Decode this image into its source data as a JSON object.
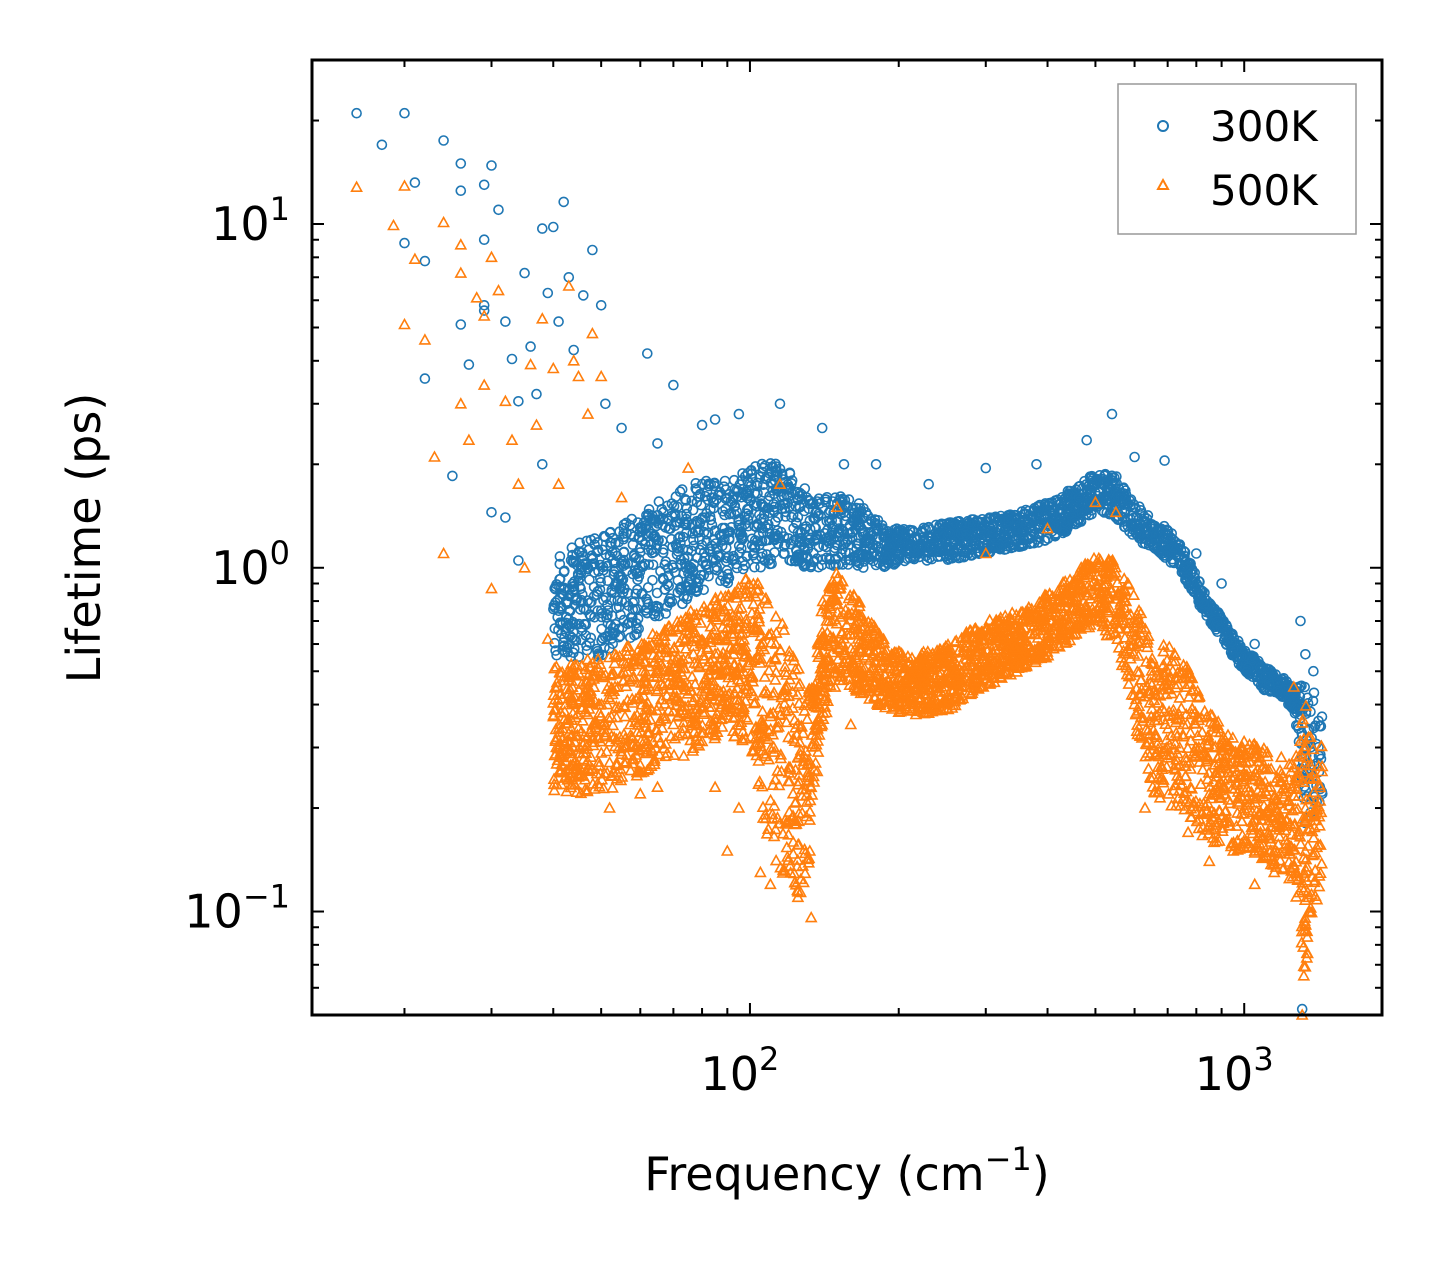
{
  "chart_data": {
    "type": "scatter",
    "title": "",
    "xscale": "log",
    "yscale": "log",
    "xlim": [
      13,
      1900
    ],
    "ylim": [
      0.05,
      30
    ],
    "xlabel": {
      "main": "Frequency (cm",
      "sup": "−1",
      "end": ")"
    },
    "ylabel": "Lifetime (ps)",
    "x_ticks": [
      {
        "value": 100,
        "base": "10",
        "exp": "2"
      },
      {
        "value": 1000,
        "base": "10",
        "exp": "3"
      }
    ],
    "y_ticks": [
      {
        "value": 0.1,
        "base": "10",
        "exp": "−1"
      },
      {
        "value": 1,
        "base": "10",
        "exp": "0"
      },
      {
        "value": 10,
        "base": "10",
        "exp": "1"
      }
    ],
    "legend": {
      "position": "top-right"
    },
    "series": [
      {
        "name": "300K",
        "marker": "circle",
        "color": "#1f77b4",
        "points": [
          [
            16,
            21
          ],
          [
            18,
            17
          ],
          [
            20,
            8.8
          ],
          [
            20,
            21
          ],
          [
            21,
            13.2
          ],
          [
            22,
            7.8
          ],
          [
            22,
            3.55
          ],
          [
            24,
            17.5
          ],
          [
            25,
            1.85
          ],
          [
            26,
            15
          ],
          [
            26,
            12.5
          ],
          [
            26,
            5.1
          ],
          [
            27,
            3.9
          ],
          [
            29,
            13
          ],
          [
            29,
            5.8
          ],
          [
            29,
            5.6
          ],
          [
            29,
            9
          ],
          [
            30,
            14.8
          ],
          [
            30,
            1.45
          ],
          [
            31,
            11
          ],
          [
            32,
            5.2
          ],
          [
            32,
            1.4
          ],
          [
            33,
            4.05
          ],
          [
            34,
            3.05
          ],
          [
            34,
            1.05
          ],
          [
            35,
            7.2
          ],
          [
            36,
            4.4
          ],
          [
            37,
            3.2
          ],
          [
            38,
            9.7
          ],
          [
            38,
            2.0
          ],
          [
            39,
            6.3
          ],
          [
            40,
            9.8
          ],
          [
            41,
            5.2
          ],
          [
            42,
            11.6
          ],
          [
            43,
            7.0
          ],
          [
            44,
            4.3
          ],
          [
            46,
            6.2
          ],
          [
            48,
            8.4
          ],
          [
            50,
            5.8
          ],
          [
            51,
            3.0
          ],
          [
            55,
            2.55
          ],
          [
            62,
            4.2
          ],
          [
            65,
            2.3
          ],
          [
            70,
            3.4
          ],
          [
            80,
            2.6
          ],
          [
            85,
            2.7
          ],
          [
            95,
            2.8
          ],
          [
            115,
            3.0
          ],
          [
            140,
            2.55
          ],
          [
            155,
            2.0
          ],
          [
            180,
            2.0
          ],
          [
            230,
            1.75
          ],
          [
            300,
            1.95
          ],
          [
            380,
            2.0
          ],
          [
            480,
            2.35
          ],
          [
            540,
            2.8
          ],
          [
            600,
            2.1
          ],
          [
            690,
            2.05
          ],
          [
            800,
            1.1
          ],
          [
            900,
            0.9
          ],
          [
            1050,
            0.6
          ],
          [
            1300,
            0.7
          ],
          [
            1330,
            0.56
          ],
          [
            1380,
            0.5
          ],
          [
            1310,
            0.052
          ]
        ],
        "trend": [
          [
            40,
            1.1,
            0.55
          ],
          [
            50,
            1.25,
            0.55
          ],
          [
            60,
            1.45,
            0.65
          ],
          [
            70,
            1.65,
            0.75
          ],
          [
            80,
            1.8,
            0.85
          ],
          [
            90,
            1.8,
            0.9
          ],
          [
            100,
            1.95,
            1.0
          ],
          [
            110,
            2.05,
            1.0
          ],
          [
            120,
            1.95,
            1.05
          ],
          [
            130,
            1.7,
            1.0
          ],
          [
            140,
            1.6,
            1.0
          ],
          [
            150,
            1.65,
            1.0
          ],
          [
            160,
            1.6,
            1.0
          ],
          [
            170,
            1.5,
            1.0
          ],
          [
            190,
            1.3,
            1.0
          ],
          [
            210,
            1.3,
            1.05
          ],
          [
            250,
            1.35,
            1.05
          ],
          [
            300,
            1.4,
            1.1
          ],
          [
            350,
            1.45,
            1.15
          ],
          [
            400,
            1.55,
            1.2
          ],
          [
            450,
            1.7,
            1.3
          ],
          [
            500,
            1.9,
            1.45
          ],
          [
            550,
            1.85,
            1.4
          ],
          [
            600,
            1.55,
            1.2
          ],
          [
            650,
            1.4,
            1.15
          ],
          [
            700,
            1.3,
            1.05
          ],
          [
            750,
            1.15,
            0.95
          ],
          [
            800,
            0.95,
            0.8
          ],
          [
            850,
            0.8,
            0.7
          ],
          [
            900,
            0.72,
            0.62
          ],
          [
            950,
            0.64,
            0.55
          ],
          [
            1000,
            0.58,
            0.5
          ],
          [
            1100,
            0.52,
            0.44
          ],
          [
            1200,
            0.48,
            0.42
          ],
          [
            1260,
            0.44,
            0.38
          ],
          [
            1330,
            0.48,
            0.18
          ],
          [
            1380,
            0.45,
            0.2
          ],
          [
            1440,
            0.38,
            0.2
          ]
        ]
      },
      {
        "name": "500K",
        "marker": "triangle",
        "color": "#ff7f0e",
        "points": [
          [
            16,
            12.8
          ],
          [
            19,
            9.9
          ],
          [
            20,
            5.1
          ],
          [
            20,
            12.9
          ],
          [
            21,
            7.9
          ],
          [
            22,
            4.6
          ],
          [
            23,
            2.1
          ],
          [
            24,
            10.1
          ],
          [
            24,
            1.1
          ],
          [
            26,
            8.7
          ],
          [
            26,
            7.2
          ],
          [
            26,
            3.0
          ],
          [
            27,
            2.35
          ],
          [
            28,
            6.1
          ],
          [
            29,
            5.4
          ],
          [
            29,
            3.4
          ],
          [
            30,
            8.0
          ],
          [
            30,
            0.87
          ],
          [
            31,
            6.4
          ],
          [
            32,
            3.05
          ],
          [
            33,
            2.35
          ],
          [
            34,
            1.75
          ],
          [
            35,
            1.0
          ],
          [
            36,
            3.9
          ],
          [
            37,
            2.6
          ],
          [
            38,
            5.3
          ],
          [
            39,
            0.62
          ],
          [
            40,
            3.8
          ],
          [
            41,
            1.75
          ],
          [
            43,
            6.6
          ],
          [
            44,
            4.0
          ],
          [
            45,
            3.6
          ],
          [
            47,
            2.8
          ],
          [
            48,
            4.8
          ],
          [
            50,
            3.6
          ],
          [
            52,
            0.2
          ],
          [
            55,
            1.6
          ],
          [
            60,
            0.22
          ],
          [
            65,
            0.23
          ],
          [
            75,
            1.95
          ],
          [
            85,
            0.23
          ],
          [
            90,
            0.15
          ],
          [
            95,
            0.2
          ],
          [
            105,
            0.13
          ],
          [
            110,
            0.12
          ],
          [
            115,
            1.75
          ],
          [
            125,
            0.11
          ],
          [
            133,
            0.096
          ],
          [
            150,
            1.5
          ],
          [
            160,
            0.35
          ],
          [
            200,
            0.38
          ],
          [
            250,
            0.39
          ],
          [
            300,
            1.1
          ],
          [
            400,
            1.3
          ],
          [
            500,
            1.55
          ],
          [
            550,
            1.45
          ],
          [
            630,
            0.2
          ],
          [
            700,
            0.28
          ],
          [
            770,
            0.17
          ],
          [
            850,
            0.14
          ],
          [
            950,
            0.15
          ],
          [
            1050,
            0.12
          ],
          [
            1150,
            0.13
          ],
          [
            1260,
            0.45
          ],
          [
            1310,
            0.05
          ],
          [
            1320,
            0.065
          ],
          [
            1350,
            0.11
          ]
        ],
        "trend": [
          [
            40,
            0.52,
            0.22
          ],
          [
            50,
            0.55,
            0.22
          ],
          [
            60,
            0.62,
            0.25
          ],
          [
            70,
            0.7,
            0.27
          ],
          [
            80,
            0.78,
            0.3
          ],
          [
            90,
            0.85,
            0.33
          ],
          [
            100,
            0.95,
            0.3
          ],
          [
            105,
            0.9,
            0.2
          ],
          [
            110,
            0.8,
            0.15
          ],
          [
            115,
            0.7,
            0.13
          ],
          [
            120,
            0.65,
            0.12
          ],
          [
            125,
            0.55,
            0.11
          ],
          [
            130,
            0.45,
            0.11
          ],
          [
            135,
            0.45,
            0.2
          ],
          [
            140,
            0.8,
            0.35
          ],
          [
            150,
            1.0,
            0.45
          ],
          [
            160,
            0.9,
            0.45
          ],
          [
            170,
            0.75,
            0.42
          ],
          [
            190,
            0.6,
            0.38
          ],
          [
            210,
            0.55,
            0.37
          ],
          [
            250,
            0.6,
            0.38
          ],
          [
            300,
            0.7,
            0.45
          ],
          [
            350,
            0.75,
            0.5
          ],
          [
            400,
            0.85,
            0.55
          ],
          [
            450,
            0.95,
            0.62
          ],
          [
            500,
            1.1,
            0.68
          ],
          [
            550,
            1.05,
            0.6
          ],
          [
            600,
            0.85,
            0.35
          ],
          [
            650,
            0.6,
            0.22
          ],
          [
            700,
            0.6,
            0.2
          ],
          [
            750,
            0.55,
            0.2
          ],
          [
            800,
            0.45,
            0.18
          ],
          [
            850,
            0.38,
            0.15
          ],
          [
            900,
            0.35,
            0.16
          ],
          [
            950,
            0.33,
            0.15
          ],
          [
            1000,
            0.32,
            0.15
          ],
          [
            1100,
            0.3,
            0.14
          ],
          [
            1200,
            0.28,
            0.13
          ],
          [
            1260,
            0.27,
            0.12
          ],
          [
            1330,
            0.4,
            0.06
          ],
          [
            1380,
            0.35,
            0.1
          ],
          [
            1440,
            0.3,
            0.12
          ]
        ]
      }
    ]
  }
}
